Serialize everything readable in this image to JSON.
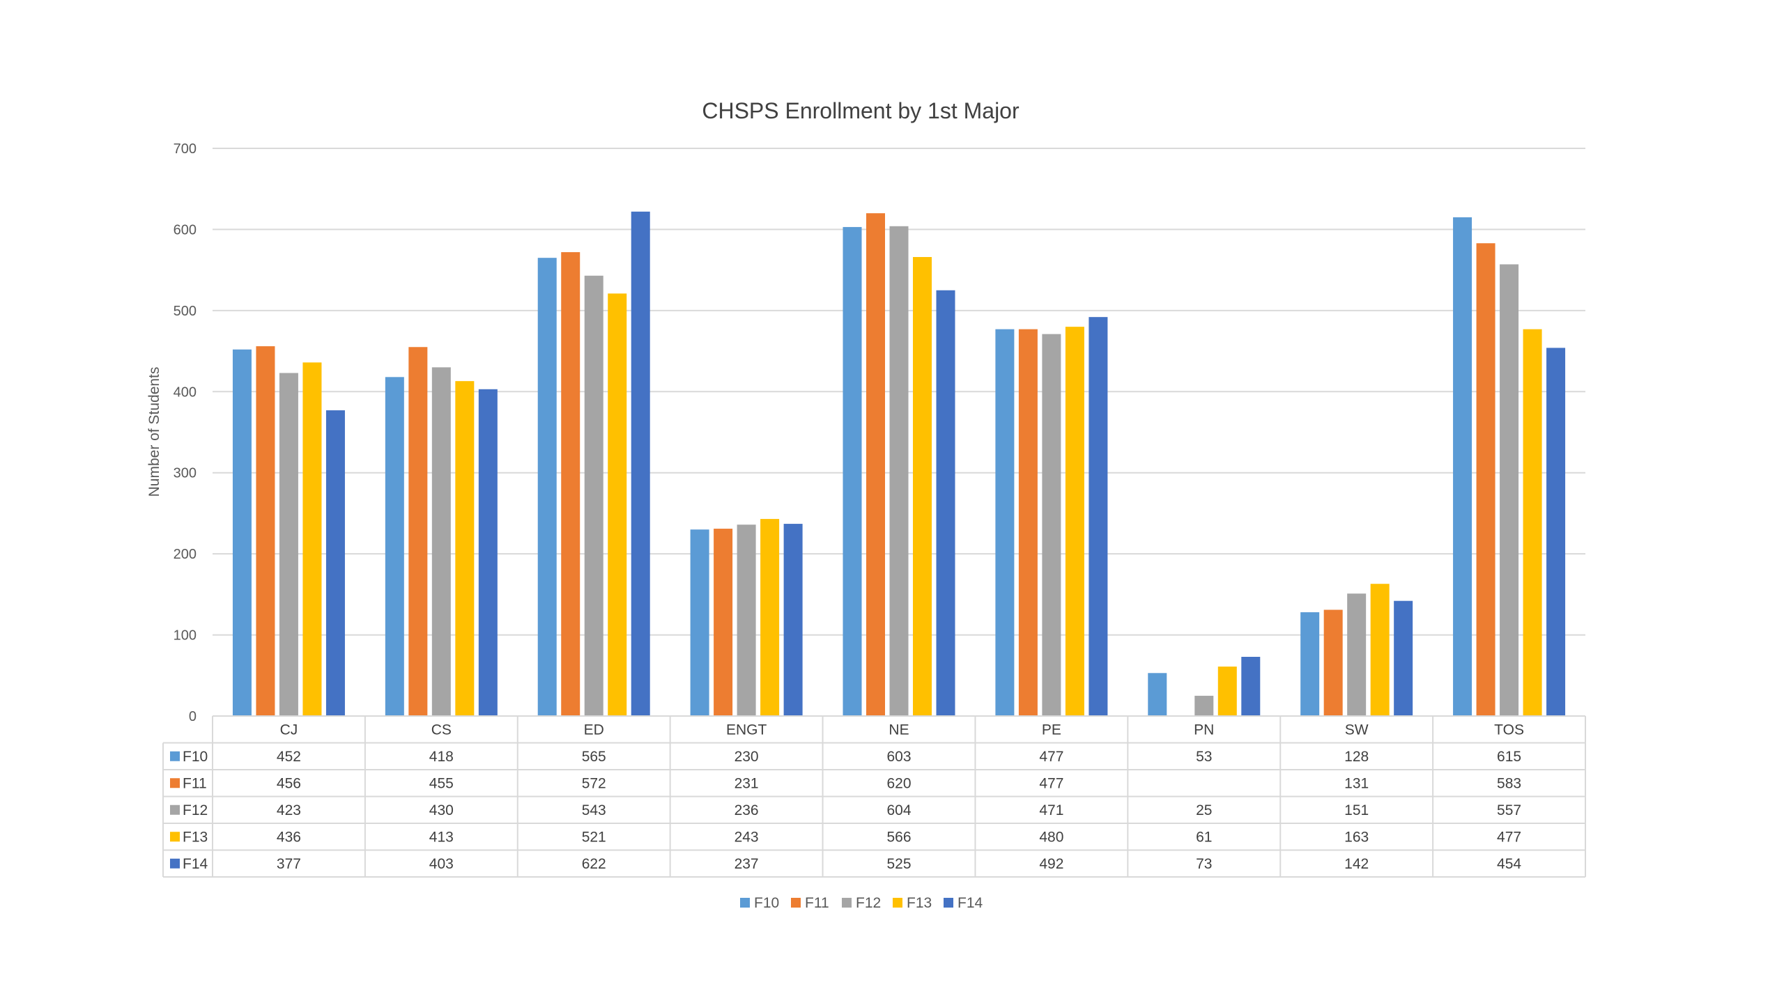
{
  "chart_data": {
    "type": "bar",
    "title": "CHSPS Enrollment by 1st Major",
    "xlabel": "",
    "ylabel": "Number of Students",
    "ylim": [
      0,
      700
    ],
    "yticks": [
      "0",
      "100",
      "200",
      "300",
      "400",
      "500",
      "600",
      "700"
    ],
    "grid": true,
    "legend_position": "bottom",
    "categories": [
      "CJ",
      "CS",
      "ED",
      "ENGT",
      "NE",
      "PE",
      "PN",
      "SW",
      "TOS"
    ],
    "series": [
      {
        "name": "F10",
        "color": "#5B9BD5",
        "values": [
          452,
          418,
          565,
          230,
          603,
          477,
          53,
          128,
          615
        ]
      },
      {
        "name": "F11",
        "color": "#ED7D31",
        "values": [
          456,
          455,
          572,
          231,
          620,
          477,
          null,
          131,
          583
        ]
      },
      {
        "name": "F12",
        "color": "#A5A5A5",
        "values": [
          423,
          430,
          543,
          236,
          604,
          471,
          25,
          151,
          557
        ]
      },
      {
        "name": "F13",
        "color": "#FFC000",
        "values": [
          436,
          413,
          521,
          243,
          566,
          480,
          61,
          163,
          477
        ]
      },
      {
        "name": "F14",
        "color": "#4472C4",
        "values": [
          377,
          403,
          622,
          237,
          525,
          492,
          73,
          142,
          454
        ]
      }
    ]
  }
}
